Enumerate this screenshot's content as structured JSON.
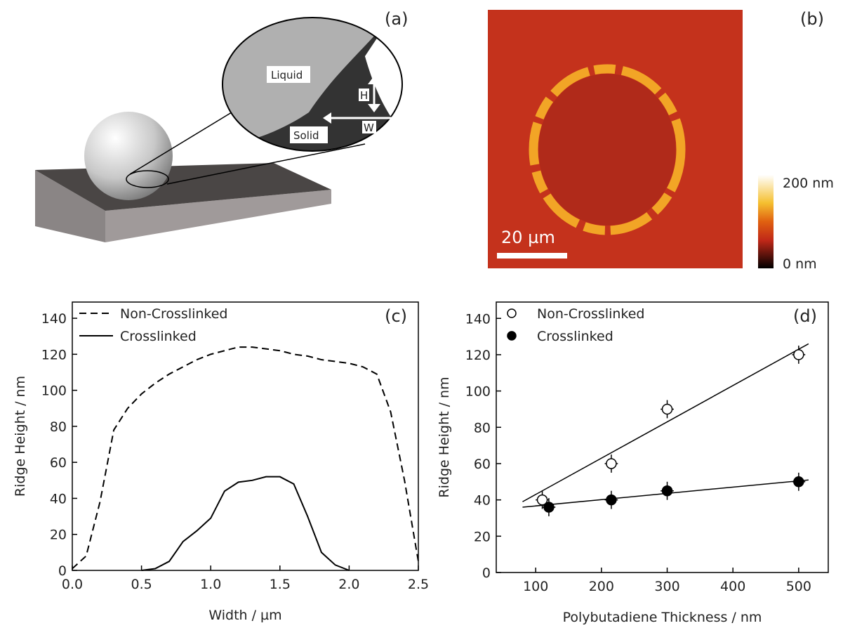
{
  "figure": {
    "panel_labels": [
      "(a)",
      "(b)"
    ],
    "diagram": {
      "liquid": "Liquid",
      "solid": "Solid",
      "height": "H",
      "width": "W"
    },
    "afm": {
      "scale_bar": "20 µm",
      "colorbar_max": "200 nm",
      "colorbar_min": "0 nm"
    }
  },
  "chart_data": [
    {
      "type": "line",
      "panel_label": "(c)",
      "x_label": "Width / µm",
      "y_label": "Ridge Height / nm",
      "x": [
        0,
        0.1,
        0.2,
        0.3,
        0.4,
        0.5,
        0.6,
        0.7,
        0.8,
        0.9,
        1.0,
        1.1,
        1.2,
        1.3,
        1.4,
        1.5,
        1.6,
        1.7,
        1.8,
        1.9,
        2.0,
        2.1,
        2.2,
        2.3,
        2.4,
        2.5
      ],
      "xlim": [
        0,
        2.5
      ],
      "xticks": [
        {
          "value": 0,
          "label": "0.0"
        },
        0.5,
        {
          "value": 1,
          "label": "1.0"
        },
        1.5,
        {
          "value": 2,
          "label": "2.0"
        },
        2.5
      ],
      "ylim": [
        0,
        149
      ],
      "yticks": [
        0,
        20,
        40,
        60,
        80,
        100,
        120,
        140
      ],
      "legend": "upper left",
      "series": [
        {
          "name": "Non-Crosslinked",
          "color": "#000000",
          "line_style": "dashed",
          "values": [
            1,
            8,
            38,
            78,
            90,
            98,
            104,
            109,
            113,
            117,
            120,
            122,
            124,
            124,
            123,
            122,
            120,
            119,
            117,
            116,
            115,
            113,
            109,
            88,
            50,
            5
          ]
        },
        {
          "name": "Crosslinked",
          "color": "#000000",
          "line_style": "solid",
          "values": [
            null,
            null,
            null,
            null,
            null,
            0,
            1,
            5,
            16,
            22,
            29,
            44,
            49,
            50,
            52,
            52,
            48,
            30,
            10,
            3,
            0,
            null,
            null,
            null,
            null,
            null
          ]
        }
      ]
    },
    {
      "type": "scatter",
      "panel_label": "(d)",
      "x_label": "Polybutadiene Thickness / nm",
      "y_label": "Ridge Height / nm",
      "xlim": [
        40,
        545
      ],
      "xticks": [
        100,
        200,
        300,
        400,
        500
      ],
      "ylim": [
        0,
        149
      ],
      "yticks": [
        0,
        20,
        40,
        60,
        80,
        100,
        120,
        140
      ],
      "legend": "upper left",
      "series": [
        {
          "name": "Non-Crosslinked",
          "color": "#ffffff",
          "x": [
            110,
            215,
            300,
            500
          ],
          "values": [
            40,
            60,
            90,
            120
          ],
          "xerr": [
            10,
            10,
            10,
            10
          ],
          "yerr": [
            5,
            5,
            5,
            5
          ]
        },
        {
          "name": "Crosslinked",
          "color": "#000000",
          "x": [
            120,
            215,
            300,
            500
          ],
          "values": [
            36,
            40,
            45,
            50
          ],
          "xerr": [
            10,
            10,
            10,
            10
          ],
          "yerr": [
            5,
            5,
            5,
            5
          ]
        }
      ],
      "fit_lines": [
        {
          "x": [
            80,
            515
          ],
          "values": [
            39,
            126
          ]
        },
        {
          "x": [
            80,
            515
          ],
          "values": [
            36,
            51
          ]
        }
      ]
    }
  ]
}
